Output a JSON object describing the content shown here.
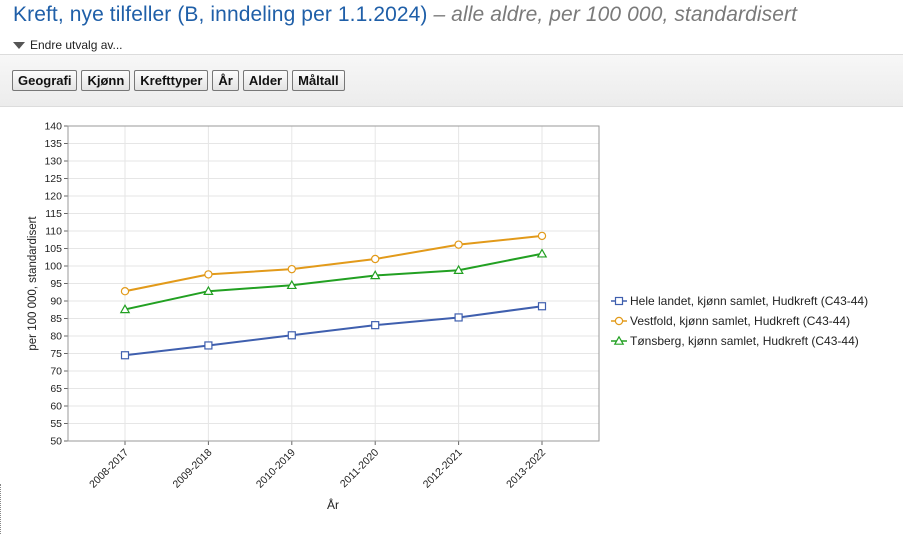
{
  "header": {
    "title_main": "Kreft, nye tilfeller (B, inndeling per 1.1.2024)",
    "title_sub": "– alle aldre, per 100 000, standardisert",
    "change_selection": "Endre utvalg av..."
  },
  "toolbar": {
    "buttons": [
      "Geografi",
      "Kjønn",
      "Krefttyper",
      "År",
      "Alder",
      "Måltall"
    ]
  },
  "chart_data": {
    "type": "line",
    "categories": [
      "2008-2017",
      "2009-2018",
      "2010-2019",
      "2011-2020",
      "2012-2021",
      "2013-2022"
    ],
    "xlabel": "År",
    "ylabel": "per 100 000, standardisert",
    "ylim": [
      50,
      140
    ],
    "ytick_step": 5,
    "grid": true,
    "legend_position": "right",
    "series": [
      {
        "name": "Hele landet, kjønn samlet, Hudkreft (C43-44)",
        "color": "#3f5fae",
        "marker": "square",
        "values": [
          74.5,
          77.3,
          80.2,
          83.1,
          85.3,
          88.5
        ]
      },
      {
        "name": "Vestfold, kjønn samlet, Hudkreft (C43-44)",
        "color": "#e29a1a",
        "marker": "circle",
        "values": [
          92.8,
          97.6,
          99.1,
          102.0,
          106.1,
          108.6
        ]
      },
      {
        "name": "Tønsberg, kjønn samlet, Hudkreft (C43-44)",
        "color": "#22a022",
        "marker": "triangle",
        "values": [
          87.6,
          92.8,
          94.5,
          97.3,
          98.8,
          103.5
        ]
      }
    ]
  }
}
